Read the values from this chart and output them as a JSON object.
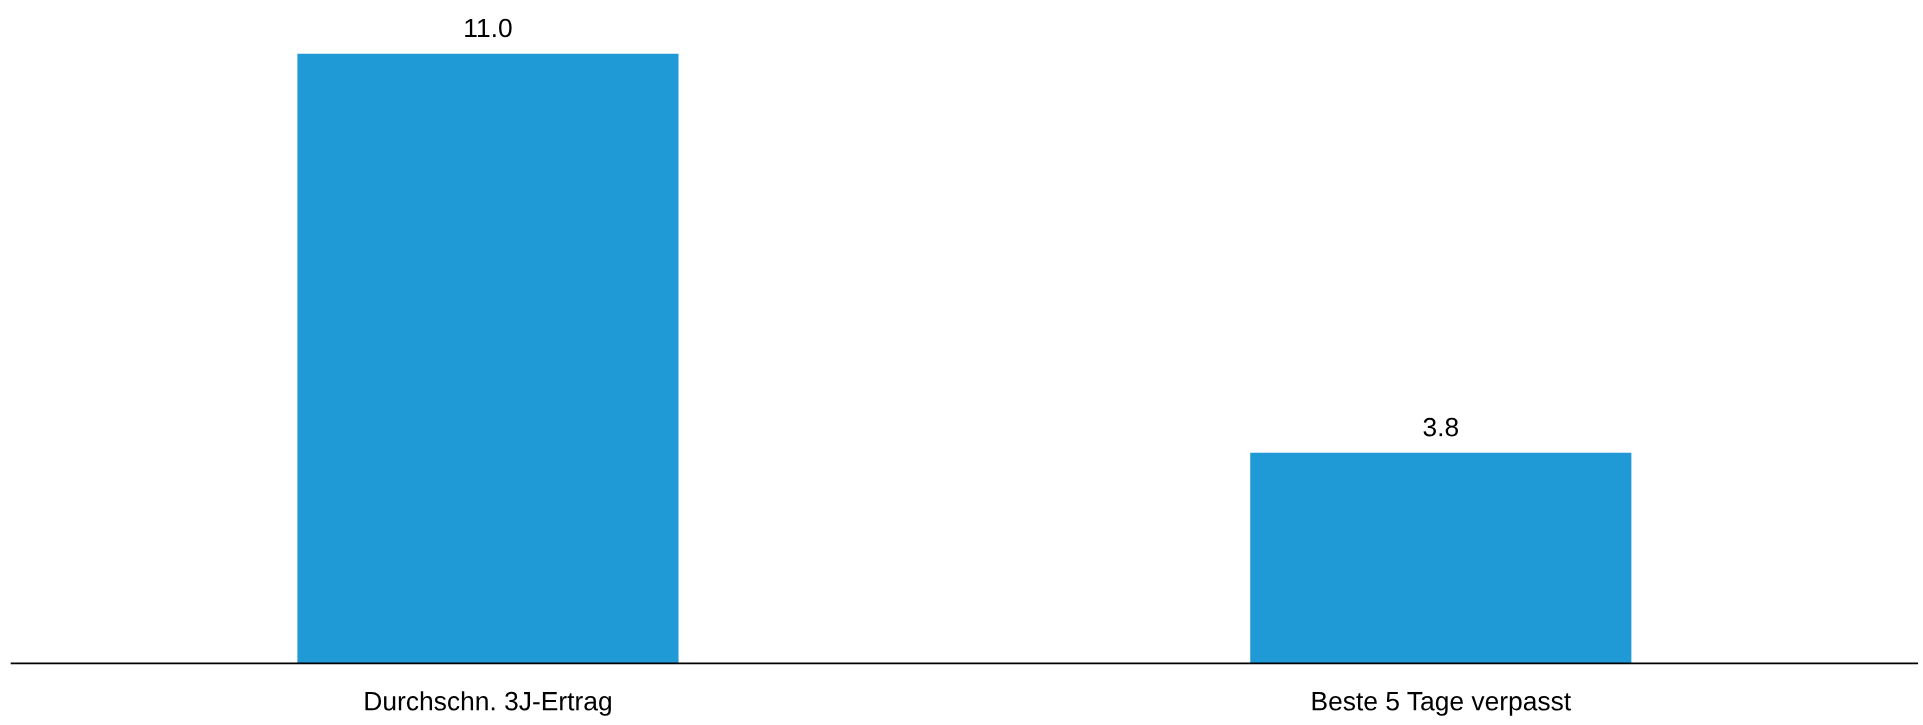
{
  "chart_data": {
    "type": "bar",
    "categories": [
      "Durchschn. 3J-Ertrag",
      "Beste 5 Tage verpasst"
    ],
    "values": [
      11.0,
      3.8
    ],
    "value_labels": [
      "11.0",
      "3.8"
    ],
    "color": "#1f9ad6",
    "tick_labels": "x",
    "grid": false
  }
}
